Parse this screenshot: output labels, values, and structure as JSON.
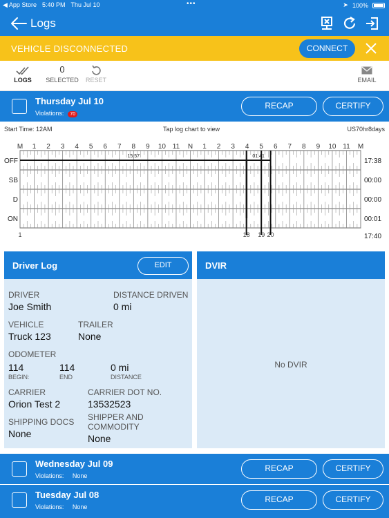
{
  "status_bar": {
    "carrier": "◀ App Store",
    "time": "5:40 PM",
    "date": "Thu Jul 10",
    "battery": "100%"
  },
  "nav": {
    "title": "Logs"
  },
  "banner": {
    "message": "VEHICLE DISCONNECTED",
    "connect_label": "CONNECT"
  },
  "toolbar": {
    "logs_label": "LOGS",
    "selected_count": "0",
    "selected_label": "SELECTED",
    "reset_label": "RESET",
    "email_label": "EMAIL"
  },
  "days": [
    {
      "name": "Thursday Jul 10",
      "violations_label": "Violations:",
      "violations": "70",
      "recap": "RECAP",
      "certify": "CERTIFY"
    },
    {
      "name": "Wednesday Jul 09",
      "violations_label": "Violations:",
      "violations": "None",
      "recap": "RECAP",
      "certify": "CERTIFY"
    },
    {
      "name": "Tuesday Jul 08",
      "violations_label": "Violations:",
      "violations": "None",
      "recap": "RECAP",
      "certify": "CERTIFY"
    }
  ],
  "chart_info": {
    "start_time": "Start Time: 12AM",
    "hint": "Tap log chart to view",
    "cycle": "US70hr8days"
  },
  "chart_data": {
    "type": "table",
    "hour_labels": [
      "M",
      "1",
      "2",
      "3",
      "4",
      "5",
      "6",
      "7",
      "8",
      "9",
      "10",
      "11",
      "N",
      "1",
      "2",
      "3",
      "4",
      "5",
      "6",
      "7",
      "8",
      "9",
      "10",
      "11",
      "M"
    ],
    "rows": [
      "OFF",
      "SB",
      "D",
      "ON"
    ],
    "totals": [
      "17:38",
      "00:00",
      "00:00",
      "00:01"
    ],
    "grand_total": "17:40",
    "segment_labels": [
      "15:57",
      "01:41"
    ],
    "change_markers": [
      {
        "label": "1",
        "hour": 0
      },
      {
        "label": "18",
        "hour": 15.95
      },
      {
        "label": "19",
        "hour": 17.0
      },
      {
        "label": "20",
        "hour": 17.65
      }
    ],
    "segments": [
      {
        "status": "OFF",
        "start": 0,
        "end": 15.95
      },
      {
        "status": "ON",
        "start": 15.95,
        "end": 15.97
      },
      {
        "status": "OFF",
        "start": 15.97,
        "end": 17.65
      }
    ]
  },
  "driver_log": {
    "title": "Driver Log",
    "edit_label": "EDIT",
    "driver_label": "DRIVER",
    "driver": "Joe Smith",
    "distance_label": "DISTANCE DRIVEN",
    "distance": "0 mi",
    "vehicle_label": "VEHICLE",
    "vehicle": "Truck 123",
    "trailer_label": "TRAILER",
    "trailer": "None",
    "odometer_label": "ODOMETER",
    "odo_begin": "114",
    "odo_begin_label": "BEGIN:",
    "odo_end": "114",
    "odo_end_label": "END",
    "odo_distance": "0 mi",
    "odo_distance_label": "DISTANCE",
    "carrier_label": "CARRIER",
    "carrier": "Orion Test 2",
    "dot_label": "CARRIER DOT NO.",
    "dot": "13532523",
    "shipping_label": "SHIPPING DOCS",
    "shipping": "None",
    "shipper_label": "SHIPPER AND COMMODITY",
    "shipper": "None"
  },
  "dvir": {
    "title": "DVIR",
    "empty": "No DVIR"
  },
  "colors": {
    "primary": "#1a7fd8",
    "banner": "#f7c21a",
    "panel": "#dbeaf7",
    "violation": "#e21a1a"
  }
}
